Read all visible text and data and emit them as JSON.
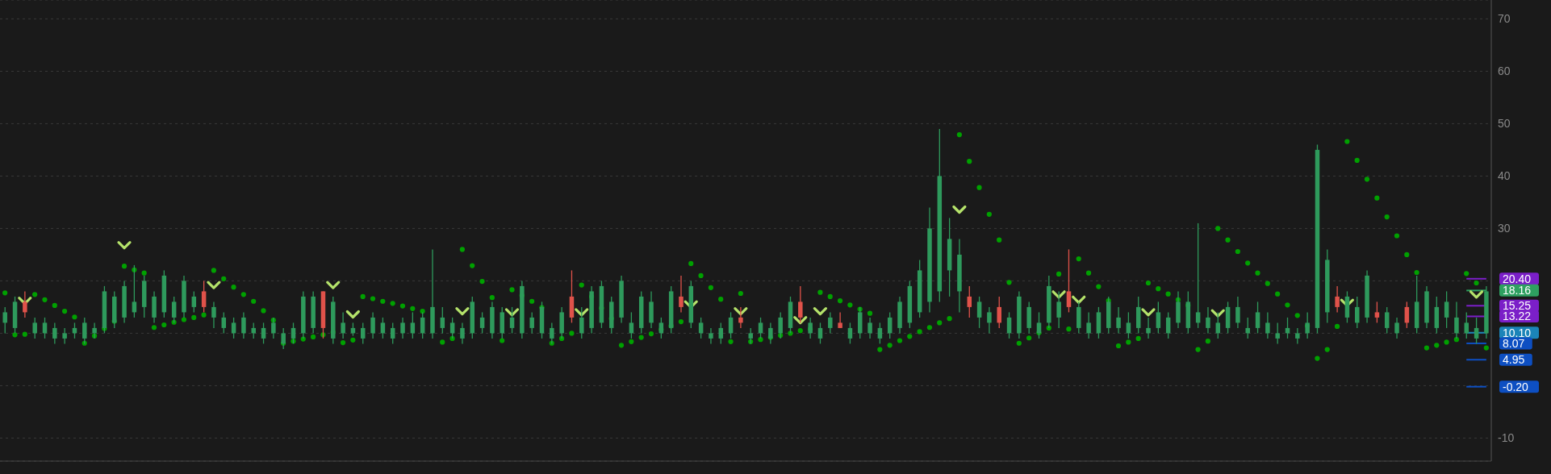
{
  "chart_data": {
    "type": "candlestick",
    "categories": [
      null,
      null,
      null,
      null,
      null,
      null,
      null,
      null,
      null,
      null,
      null,
      null,
      null,
      null,
      null,
      null,
      null,
      null,
      null,
      null,
      null,
      null,
      null,
      null,
      null,
      null,
      null,
      null,
      null,
      null,
      null,
      null,
      null,
      null,
      null,
      null,
      null,
      null,
      null,
      null,
      null,
      null,
      null,
      null,
      null,
      null,
      null,
      null,
      null,
      null,
      null,
      null,
      null,
      null,
      null,
      null,
      null,
      null,
      null,
      null,
      null,
      null,
      null,
      null,
      null,
      null,
      null,
      null,
      null,
      null,
      null,
      null,
      null,
      null,
      null,
      null,
      null,
      null,
      null,
      null,
      null,
      null,
      null,
      null,
      null,
      null,
      null,
      null,
      null,
      null,
      null,
      null,
      null,
      null,
      null,
      null,
      null,
      null,
      null,
      null,
      null,
      null,
      null,
      null,
      null,
      null,
      null,
      null,
      null,
      null,
      null,
      null,
      null,
      null,
      null,
      null,
      null,
      null,
      null,
      null,
      null,
      null,
      null,
      null,
      null,
      null,
      null,
      null,
      null,
      null,
      null,
      null,
      null,
      null,
      null,
      null,
      null,
      null,
      null,
      null,
      null,
      null,
      null,
      null,
      null,
      null,
      null,
      null,
      null,
      null
    ],
    "ohlc": [
      [
        12,
        15,
        10,
        14
      ],
      [
        11,
        17,
        10,
        16
      ],
      [
        16,
        18,
        13,
        14
      ],
      [
        10,
        13,
        9,
        12
      ],
      [
        10,
        13,
        9,
        12
      ],
      [
        9,
        12,
        8,
        11
      ],
      [
        9,
        11,
        8,
        10
      ],
      [
        10,
        12,
        9,
        11
      ],
      [
        9,
        13,
        8,
        12
      ],
      [
        10,
        12,
        9,
        11
      ],
      [
        11,
        19,
        10,
        18
      ],
      [
        12,
        18,
        11,
        17
      ],
      [
        13,
        20,
        12,
        19
      ],
      [
        14,
        23,
        13,
        16
      ],
      [
        15,
        21,
        13,
        20
      ],
      [
        13,
        18,
        12,
        17
      ],
      [
        14,
        22,
        13,
        21
      ],
      [
        13,
        17,
        12,
        16
      ],
      [
        14,
        21,
        13,
        20
      ],
      [
        15,
        18,
        14,
        17
      ],
      [
        18,
        20,
        14,
        15
      ],
      [
        13,
        16,
        11,
        15
      ],
      [
        11,
        14,
        10,
        13
      ],
      [
        10,
        13,
        9,
        12
      ],
      [
        10,
        14,
        9,
        13
      ],
      [
        10,
        12,
        9,
        11
      ],
      [
        9,
        12,
        8,
        11
      ],
      [
        10,
        13,
        9,
        12
      ],
      [
        8,
        11,
        7,
        10
      ],
      [
        9,
        12,
        8,
        11
      ],
      [
        10,
        18,
        9,
        17
      ],
      [
        11,
        18,
        10,
        17
      ],
      [
        18,
        18,
        9,
        11
      ],
      [
        9,
        17,
        8,
        16
      ],
      [
        10,
        14,
        9,
        12
      ],
      [
        10,
        12,
        9.5,
        11
      ],
      [
        9,
        12,
        8,
        11
      ],
      [
        10,
        14,
        9,
        13
      ],
      [
        10,
        13,
        9,
        12
      ],
      [
        9,
        12,
        8,
        11
      ],
      [
        10,
        13,
        9,
        12
      ],
      [
        10,
        14,
        9,
        12
      ],
      [
        10,
        14,
        9,
        13
      ],
      [
        10,
        26,
        9,
        15
      ],
      [
        11,
        15,
        10,
        13
      ],
      [
        10,
        13,
        9,
        12
      ],
      [
        9,
        12,
        8,
        11
      ],
      [
        10,
        17,
        9,
        16
      ],
      [
        11,
        14,
        10,
        13
      ],
      [
        10,
        16,
        9,
        15
      ],
      [
        10,
        15,
        9,
        14
      ],
      [
        11,
        15,
        10,
        13
      ],
      [
        10,
        20,
        9,
        19
      ],
      [
        11,
        14,
        10,
        13
      ],
      [
        10,
        16,
        9,
        15
      ],
      [
        9,
        12,
        8,
        11
      ],
      [
        10,
        15,
        9,
        14
      ],
      [
        17,
        22,
        12,
        13
      ],
      [
        10,
        15,
        9,
        13
      ],
      [
        11,
        19,
        10,
        18
      ],
      [
        12,
        20,
        11,
        19
      ],
      [
        11,
        17,
        10,
        16
      ],
      [
        13,
        21,
        12,
        20
      ],
      [
        10,
        14,
        9,
        12
      ],
      [
        11,
        18,
        10,
        17
      ],
      [
        12,
        18,
        11,
        16
      ],
      [
        10,
        13,
        9,
        12
      ],
      [
        11,
        19,
        10,
        18
      ],
      [
        17,
        21,
        14,
        15
      ],
      [
        12,
        20,
        11,
        19
      ],
      [
        10,
        13,
        9,
        12
      ],
      [
        9,
        11,
        8,
        10
      ],
      [
        9,
        12,
        8,
        11
      ],
      [
        10,
        14,
        9,
        13
      ],
      [
        13,
        15,
        11,
        12
      ],
      [
        9,
        11,
        8,
        10
      ],
      [
        10,
        13,
        9,
        12
      ],
      [
        9,
        12,
        8,
        11
      ],
      [
        10,
        14,
        9,
        13
      ],
      [
        11,
        17,
        10,
        16
      ],
      [
        16,
        19,
        12,
        13
      ],
      [
        10,
        13,
        9,
        12
      ],
      [
        9,
        12,
        8,
        11
      ],
      [
        11,
        14,
        10,
        13
      ],
      [
        12,
        14,
        11,
        11
      ],
      [
        9,
        12,
        8,
        11
      ],
      [
        10,
        15,
        9,
        14
      ],
      [
        10,
        13,
        9,
        12
      ],
      [
        9,
        12,
        8,
        11
      ],
      [
        10,
        14,
        9,
        13
      ],
      [
        11,
        17,
        10,
        16
      ],
      [
        12,
        20,
        11,
        19
      ],
      [
        14,
        24,
        13,
        22
      ],
      [
        16,
        34,
        14,
        30
      ],
      [
        18,
        49,
        16,
        40
      ],
      [
        22,
        32,
        17,
        28
      ],
      [
        18,
        28,
        14,
        25
      ],
      [
        17,
        19,
        13,
        15
      ],
      [
        13,
        17,
        11,
        16
      ],
      [
        12,
        15,
        10,
        14
      ],
      [
        15,
        17,
        11,
        12
      ],
      [
        10,
        14,
        9,
        13
      ],
      [
        10,
        18,
        9,
        17
      ],
      [
        11,
        16,
        10,
        15
      ],
      [
        10,
        14,
        9,
        12
      ],
      [
        12,
        21,
        11,
        19
      ],
      [
        13,
        18,
        11,
        16
      ],
      [
        18,
        26,
        14,
        15
      ],
      [
        11,
        16,
        10,
        15
      ],
      [
        10,
        14,
        9,
        12
      ],
      [
        10,
        15,
        9,
        14
      ],
      [
        11,
        17,
        10,
        16
      ],
      [
        11,
        15,
        10,
        13
      ],
      [
        10,
        14,
        9,
        12
      ],
      [
        11,
        17,
        10,
        15
      ],
      [
        10,
        13,
        9,
        11
      ],
      [
        11,
        16,
        10,
        14
      ],
      [
        10,
        14,
        9,
        13
      ],
      [
        12,
        18,
        11,
        16
      ],
      [
        11,
        18,
        10,
        16
      ],
      [
        12,
        31,
        11,
        14
      ],
      [
        11,
        15,
        10,
        13
      ],
      [
        10,
        14,
        9,
        12
      ],
      [
        11,
        16,
        10,
        15
      ],
      [
        12,
        17,
        11,
        15
      ],
      [
        10,
        13,
        9,
        11
      ],
      [
        11,
        16,
        10,
        14
      ],
      [
        10,
        14,
        9,
        12
      ],
      [
        9,
        12,
        8,
        10
      ],
      [
        10,
        13,
        9,
        11
      ],
      [
        9,
        11,
        8,
        10
      ],
      [
        10,
        14,
        9,
        12
      ],
      [
        11,
        46,
        10,
        45
      ],
      [
        14,
        26,
        12,
        24
      ],
      [
        17,
        19,
        14,
        15
      ],
      [
        13,
        18,
        12,
        17
      ],
      [
        12,
        17,
        11,
        15
      ],
      [
        13,
        22,
        12,
        21
      ],
      [
        14,
        16,
        12,
        13
      ],
      [
        11,
        15,
        10,
        14
      ],
      [
        10,
        13,
        9,
        12
      ],
      [
        15,
        16,
        11,
        12
      ],
      [
        11,
        21,
        10,
        16
      ],
      [
        12,
        19,
        11,
        18
      ],
      [
        11,
        17,
        10,
        15
      ],
      [
        13,
        18,
        11,
        16
      ],
      [
        10,
        16,
        9,
        13
      ],
      [
        10,
        14,
        9,
        12
      ],
      [
        9,
        13,
        8,
        11
      ],
      [
        10,
        19,
        9,
        18
      ]
    ],
    "colors": [
      "#2e9a5c",
      "#2e9a5c",
      "#e0524a",
      "#2e9a5c",
      "#2e9a5c",
      "#2e9a5c",
      "#2e9a5c",
      "#2e9a5c",
      "#2e9a5c",
      "#2e9a5c",
      "#2e9a5c",
      "#2e9a5c",
      "#2e9a5c",
      "#2e9a5c",
      "#2e9a5c",
      "#2e9a5c",
      "#2e9a5c",
      "#2e9a5c",
      "#2e9a5c",
      "#2e9a5c",
      "#e0524a",
      "#2e9a5c",
      "#2e9a5c",
      "#2e9a5c",
      "#2e9a5c",
      "#2e9a5c",
      "#2e9a5c",
      "#2e9a5c",
      "#2e9a5c",
      "#2e9a5c",
      "#2e9a5c",
      "#2e9a5c",
      "#e0524a",
      "#2e9a5c",
      "#2e9a5c",
      "#2e9a5c",
      "#2e9a5c",
      "#2e9a5c",
      "#2e9a5c",
      "#2e9a5c",
      "#2e9a5c",
      "#2e9a5c",
      "#2e9a5c",
      "#2e9a5c",
      "#2e9a5c",
      "#2e9a5c",
      "#2e9a5c",
      "#2e9a5c",
      "#2e9a5c",
      "#2e9a5c",
      "#2e9a5c",
      "#2e9a5c",
      "#2e9a5c",
      "#2e9a5c",
      "#2e9a5c",
      "#2e9a5c",
      "#2e9a5c",
      "#e0524a",
      "#2e9a5c",
      "#2e9a5c",
      "#2e9a5c",
      "#2e9a5c",
      "#2e9a5c",
      "#2e9a5c",
      "#2e9a5c",
      "#2e9a5c",
      "#2e9a5c",
      "#2e9a5c",
      "#e0524a",
      "#2e9a5c",
      "#2e9a5c",
      "#2e9a5c",
      "#2e9a5c",
      "#2e9a5c",
      "#e0524a",
      "#2e9a5c",
      "#2e9a5c",
      "#2e9a5c",
      "#2e9a5c",
      "#2e9a5c",
      "#e0524a",
      "#2e9a5c",
      "#2e9a5c",
      "#2e9a5c",
      "#e0524a",
      "#2e9a5c",
      "#2e9a5c",
      "#2e9a5c",
      "#2e9a5c",
      "#2e9a5c",
      "#2e9a5c",
      "#2e9a5c",
      "#2e9a5c",
      "#2e9a5c",
      "#2e9a5c",
      "#2e9a5c",
      "#2e9a5c",
      "#e0524a",
      "#2e9a5c",
      "#2e9a5c",
      "#e0524a",
      "#2e9a5c",
      "#2e9a5c",
      "#2e9a5c",
      "#2e9a5c",
      "#2e9a5c",
      "#2e9a5c",
      "#e0524a",
      "#2e9a5c",
      "#2e9a5c",
      "#2e9a5c",
      "#2e9a5c",
      "#2e9a5c",
      "#2e9a5c",
      "#2e9a5c",
      "#2e9a5c",
      "#2e9a5c",
      "#2e9a5c",
      "#2e9a5c",
      "#2e9a5c",
      "#2e9a5c",
      "#2e9a5c",
      "#2e9a5c",
      "#2e9a5c",
      "#2e9a5c",
      "#2e9a5c",
      "#2e9a5c",
      "#2e9a5c",
      "#2e9a5c",
      "#2e9a5c",
      "#2e9a5c",
      "#2e9a5c",
      "#2e9a5c",
      "#2e9a5c",
      "#e0524a",
      "#2e9a5c",
      "#2e9a5c",
      "#2e9a5c",
      "#e0524a",
      "#2e9a5c",
      "#2e9a5c",
      "#e0524a",
      "#2e9a5c",
      "#2e9a5c",
      "#2e9a5c",
      "#2e9a5c",
      "#2e9a5c",
      "#2e9a5c",
      "#2e9a5c",
      "#2e9a5c"
    ],
    "series": [
      {
        "type": "scatter",
        "color": "#00a000",
        "marker": "circle",
        "values": [
          17.7,
          9.7,
          9.8,
          17.4,
          16.4,
          15.3,
          14.2,
          13.1,
          8.1,
          9.5,
          10.9,
          12.3,
          22.8,
          22.1,
          21.5,
          11.1,
          11.6,
          12.1,
          12.6,
          13.0,
          13.5,
          22.0,
          20.4,
          18.8,
          17.4,
          16.1,
          14.3,
          12.5,
          8.1,
          8.5,
          8.9,
          9.3,
          9.7,
          10.2,
          8.2,
          8.7,
          17.0,
          16.6,
          16.1,
          15.7,
          15.2,
          14.7,
          14.2,
          null,
          8.3,
          9.0,
          26.0,
          22.9,
          19.9,
          16.8,
          8.6,
          18.3,
          17.2,
          16.1,
          14.9,
          8.1,
          9.0,
          10.0,
          19.2,
          17.0,
          14.8,
          12.8,
          7.7,
          8.4,
          9.2,
          9.9,
          10.7,
          11.4,
          12.2,
          23.3,
          21.0,
          18.7,
          16.5,
          8.4,
          17.6,
          8.4,
          8.8,
          9.2,
          9.6,
          10.0,
          10.5,
          10.8,
          17.8,
          17.0,
          16.2,
          15.4,
          14.6,
          13.8,
          6.9,
          7.7,
          8.6,
          9.4,
          10.3,
          11.1,
          12.0,
          12.8,
          47.9,
          42.8,
          37.8,
          32.7,
          27.8,
          19.7,
          8.1,
          9.1,
          10.1,
          11.0,
          21.3,
          10.8,
          24.2,
          21.5,
          18.9,
          16.2,
          7.6,
          8.3,
          9.0,
          19.6,
          18.5,
          17.5,
          16.4,
          15.3,
          6.9,
          8.5,
          30.0,
          27.8,
          25.6,
          23.4,
          21.5,
          19.5,
          17.5,
          15.4,
          13.4,
          11.4,
          5.2,
          6.9,
          11.3,
          46.6,
          43.0,
          39.4,
          35.8,
          32.2,
          28.6,
          25.0,
          21.6,
          7.2,
          7.7,
          8.3,
          8.8,
          21.4,
          19.6,
          7.2
        ]
      },
      {
        "type": "scatter",
        "color": "#b5e36b",
        "values": [
          null,
          null,
          16.2,
          null,
          null,
          null,
          null,
          null,
          null,
          null,
          null,
          null,
          26.8,
          null,
          null,
          null,
          null,
          null,
          null,
          null,
          null,
          19.2,
          null,
          null,
          null,
          null,
          null,
          null,
          null,
          null,
          null,
          null,
          null,
          19.2,
          null,
          13.6,
          null,
          null,
          null,
          null,
          null,
          null,
          null,
          null,
          null,
          null,
          14.2,
          null,
          null,
          null,
          null,
          14.0,
          null,
          null,
          null,
          null,
          null,
          null,
          14.0,
          null,
          null,
          null,
          null,
          null,
          null,
          null,
          null,
          null,
          null,
          15.5,
          null,
          null,
          null,
          null,
          14.2,
          null,
          null,
          null,
          null,
          null,
          12.5,
          null,
          14.2,
          null,
          null,
          null,
          null,
          null,
          null,
          null,
          null,
          null,
          null,
          null,
          null,
          null,
          33.6,
          null,
          null,
          null,
          null,
          null,
          null,
          null,
          null,
          null,
          17.4,
          null,
          16.4,
          null,
          null,
          null,
          null,
          null,
          null,
          14.0,
          null,
          null,
          null,
          null,
          null,
          null,
          13.8,
          null,
          null,
          null,
          null,
          null,
          null,
          null,
          null,
          null,
          null,
          null,
          null,
          15.8,
          null,
          null,
          null,
          null,
          null,
          null,
          null,
          null,
          null,
          null,
          null,
          null,
          17.4,
          null
        ]
      }
    ],
    "ylim": [
      -14.4,
      73.6
    ],
    "yticks": [
      -10,
      {
        "value": 0,
        "label": null
      },
      {
        "value": 10,
        "label": null
      },
      {
        "value": 20,
        "label": null
      },
      30,
      40,
      50,
      60,
      70
    ],
    "grid": "y",
    "tick_labels": "y",
    "ref_lines": [
      {
        "axis": "y",
        "value": 20.4,
        "label": "20.40",
        "color": "#7b1fc8"
      },
      {
        "axis": "y",
        "value": 18.16,
        "label": "18.16",
        "color": "#2ea060"
      },
      {
        "axis": "y",
        "value": 15.25,
        "label": "15.25",
        "color": "#7b1fc8"
      },
      {
        "axis": "y",
        "value": 13.22,
        "label": "13.22",
        "color": "#7b1fc8"
      },
      {
        "axis": "y",
        "value": 10.1,
        "label": "10.10",
        "color": "#1b84b8"
      },
      {
        "axis": "y",
        "value": 8.07,
        "label": "8.07",
        "color": "#0d4fc2"
      },
      {
        "axis": "y",
        "value": 4.95,
        "label": "4.95",
        "color": "#0d4fc2"
      },
      {
        "axis": "y",
        "value": -0.2,
        "label": "-0.20",
        "color": "#0d4fc2"
      }
    ]
  }
}
